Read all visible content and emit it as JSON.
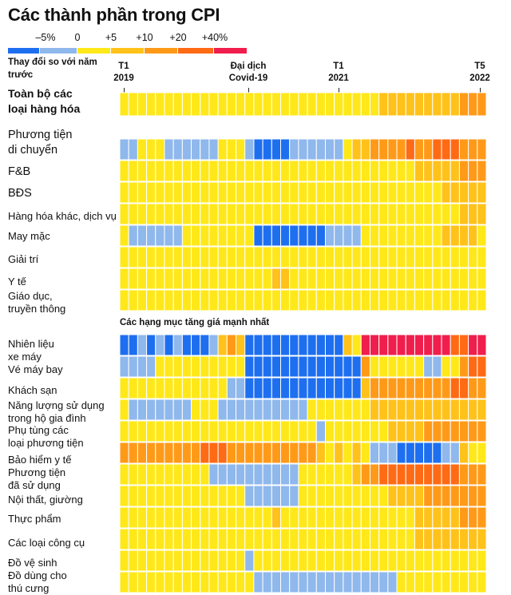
{
  "title": "Các thành phần trong CPI",
  "legend": {
    "labels": [
      "–5%",
      "0",
      "+5",
      "+10",
      "+20",
      "+40%"
    ],
    "colors": [
      "#1e6ff0",
      "#8fb8ec",
      "#ffe81a",
      "#ffc21a",
      "#ff9a18",
      "#ff6a14",
      "#f01e4c"
    ]
  },
  "subtitle_label": "Thay đổi so với năm trước",
  "timeline": [
    {
      "label": "T1 2019"
    },
    {
      "label": "Đại dịch Covid-19"
    },
    {
      "label": "T1 2021"
    },
    {
      "label": "T5 2022"
    }
  ],
  "section_header": "Các hạng mục tăng giá mạnh nhất",
  "chart_data": {
    "type": "heatmap",
    "title": "Các thành phần trong CPI",
    "value_label": "Thay đổi so với năm trước",
    "color_scale": {
      "breaks": [
        "–5%",
        "0",
        "+5",
        "+10",
        "+20",
        "+40%"
      ],
      "levels": [
        {
          "level": 0,
          "range": "≤ –5%"
        },
        {
          "level": 1,
          "range": "–5% to 0"
        },
        {
          "level": 2,
          "range": "0 to +5"
        },
        {
          "level": 3,
          "range": "+5 to +10"
        },
        {
          "level": 4,
          "range": "+10 to +20"
        },
        {
          "level": 5,
          "range": "+20 to +40%"
        },
        {
          "level": 6,
          "range": "≥ +40%"
        }
      ]
    },
    "x_range": [
      "T1 2019",
      "T5 2022"
    ],
    "months": 41,
    "rows": [
      {
        "label": "Toàn bộ các loại hàng hóa",
        "bold": true,
        "levels": [
          2,
          2,
          2,
          2,
          2,
          2,
          2,
          2,
          2,
          2,
          2,
          2,
          2,
          2,
          2,
          2,
          2,
          2,
          2,
          2,
          2,
          2,
          2,
          2,
          2,
          2,
          2,
          2,
          2,
          3,
          3,
          3,
          3,
          3,
          3,
          3,
          3,
          3,
          4,
          4,
          4
        ]
      },
      {
        "label": "Phương tiện di chuyển",
        "levels": [
          1,
          1,
          2,
          2,
          2,
          1,
          1,
          1,
          1,
          1,
          1,
          2,
          2,
          2,
          1,
          0,
          0,
          0,
          0,
          1,
          1,
          1,
          1,
          1,
          1,
          2,
          3,
          3,
          4,
          4,
          4,
          4,
          5,
          4,
          4,
          5,
          5,
          5,
          4,
          4,
          4
        ]
      },
      {
        "label": "F&B",
        "levels": [
          2,
          2,
          2,
          2,
          2,
          2,
          2,
          2,
          2,
          2,
          2,
          2,
          2,
          2,
          2,
          2,
          2,
          2,
          2,
          2,
          2,
          2,
          2,
          2,
          2,
          2,
          2,
          2,
          2,
          2,
          2,
          2,
          2,
          3,
          3,
          3,
          3,
          3,
          4,
          4,
          4
        ]
      },
      {
        "label": "BĐS",
        "levels": [
          2,
          2,
          2,
          2,
          2,
          2,
          2,
          2,
          2,
          2,
          2,
          2,
          2,
          2,
          2,
          2,
          2,
          2,
          2,
          2,
          2,
          2,
          2,
          2,
          2,
          2,
          2,
          2,
          2,
          2,
          2,
          2,
          2,
          2,
          2,
          2,
          3,
          3,
          3,
          3,
          3
        ]
      },
      {
        "label": "Hàng hóa khác, dịch vụ",
        "levels": [
          2,
          2,
          2,
          2,
          2,
          2,
          2,
          2,
          2,
          2,
          2,
          2,
          2,
          2,
          2,
          2,
          2,
          2,
          2,
          2,
          2,
          2,
          2,
          2,
          2,
          2,
          2,
          2,
          2,
          2,
          2,
          2,
          2,
          2,
          2,
          2,
          2,
          2,
          3,
          3,
          3
        ]
      },
      {
        "label": "May mặc",
        "levels": [
          2,
          1,
          1,
          1,
          1,
          1,
          1,
          2,
          2,
          2,
          2,
          2,
          2,
          2,
          2,
          0,
          0,
          0,
          0,
          0,
          0,
          0,
          0,
          1,
          1,
          1,
          1,
          2,
          2,
          2,
          2,
          2,
          2,
          2,
          2,
          2,
          3,
          3,
          3,
          3,
          2
        ]
      },
      {
        "label": "Giải trí",
        "levels": [
          2,
          2,
          2,
          2,
          2,
          2,
          2,
          2,
          2,
          2,
          2,
          2,
          2,
          2,
          2,
          2,
          2,
          2,
          2,
          2,
          2,
          2,
          2,
          2,
          2,
          2,
          2,
          2,
          2,
          2,
          2,
          2,
          2,
          2,
          2,
          2,
          2,
          2,
          2,
          2,
          2
        ]
      },
      {
        "label": "Y tế",
        "levels": [
          2,
          2,
          2,
          2,
          2,
          2,
          2,
          2,
          2,
          2,
          2,
          2,
          2,
          2,
          2,
          2,
          2,
          3,
          3,
          2,
          2,
          2,
          2,
          2,
          2,
          2,
          2,
          2,
          2,
          2,
          2,
          2,
          2,
          2,
          2,
          2,
          2,
          2,
          2,
          2,
          2
        ]
      },
      {
        "label": "Giáo dục, truyền thông",
        "levels": [
          2,
          2,
          2,
          2,
          2,
          2,
          2,
          2,
          2,
          2,
          2,
          2,
          2,
          2,
          2,
          2,
          2,
          2,
          2,
          2,
          2,
          2,
          2,
          2,
          2,
          2,
          2,
          2,
          2,
          2,
          2,
          2,
          2,
          2,
          2,
          2,
          2,
          2,
          2,
          2,
          2
        ]
      },
      {
        "label": "Nhiên liệu xe máy",
        "levels": [
          0,
          0,
          1,
          0,
          1,
          0,
          1,
          0,
          0,
          0,
          1,
          3,
          4,
          3,
          0,
          0,
          0,
          0,
          0,
          0,
          0,
          0,
          0,
          0,
          0,
          3,
          2,
          6,
          6,
          6,
          6,
          6,
          6,
          6,
          6,
          6,
          6,
          5,
          5,
          6,
          6
        ]
      },
      {
        "label": "Vé máy bay",
        "levels": [
          1,
          1,
          1,
          1,
          2,
          2,
          2,
          2,
          2,
          2,
          2,
          2,
          2,
          2,
          0,
          0,
          0,
          0,
          0,
          0,
          0,
          0,
          0,
          0,
          0,
          0,
          0,
          4,
          2,
          2,
          2,
          2,
          2,
          2,
          1,
          1,
          2,
          2,
          4,
          5,
          5
        ]
      },
      {
        "label": "Khách sạn",
        "levels": [
          2,
          2,
          2,
          2,
          2,
          2,
          2,
          2,
          2,
          2,
          2,
          2,
          1,
          1,
          0,
          0,
          0,
          0,
          0,
          0,
          0,
          0,
          0,
          0,
          0,
          0,
          0,
          3,
          4,
          4,
          4,
          4,
          4,
          4,
          4,
          4,
          4,
          5,
          5,
          4,
          4
        ]
      },
      {
        "label": "Năng lượng sử dụng trong hộ gia đình",
        "levels": [
          2,
          1,
          1,
          1,
          1,
          1,
          1,
          1,
          2,
          2,
          2,
          1,
          1,
          1,
          1,
          1,
          1,
          1,
          1,
          1,
          1,
          2,
          2,
          2,
          2,
          2,
          2,
          2,
          3,
          3,
          3,
          3,
          3,
          3,
          3,
          3,
          3,
          3,
          3,
          3,
          3
        ]
      },
      {
        "label": "Phụ tùng các loại phương tiện",
        "levels": [
          2,
          2,
          2,
          2,
          2,
          2,
          2,
          2,
          2,
          2,
          2,
          2,
          2,
          2,
          2,
          2,
          2,
          2,
          2,
          2,
          2,
          2,
          1,
          2,
          2,
          2,
          2,
          2,
          2,
          2,
          3,
          3,
          3,
          3,
          4,
          4,
          4,
          4,
          4,
          4,
          4
        ]
      },
      {
        "label": "Bảo hiểm y tế",
        "levels": [
          4,
          4,
          4,
          4,
          4,
          4,
          4,
          4,
          4,
          5,
          5,
          5,
          4,
          4,
          4,
          4,
          4,
          4,
          4,
          4,
          4,
          4,
          3,
          2,
          3,
          2,
          3,
          2,
          1,
          1,
          1,
          0,
          0,
          0,
          0,
          0,
          1,
          1,
          3,
          2,
          2
        ]
      },
      {
        "label": "Phương tiện đã sử dụng",
        "levels": [
          2,
          2,
          2,
          2,
          2,
          2,
          2,
          2,
          2,
          2,
          1,
          1,
          1,
          1,
          1,
          1,
          1,
          1,
          1,
          1,
          2,
          2,
          2,
          2,
          2,
          2,
          3,
          4,
          4,
          5,
          5,
          5,
          5,
          5,
          5,
          5,
          5,
          5,
          4,
          4,
          4
        ]
      },
      {
        "label": "Nội thất, giường",
        "levels": [
          2,
          2,
          2,
          2,
          2,
          2,
          2,
          2,
          2,
          2,
          2,
          2,
          2,
          2,
          1,
          1,
          1,
          1,
          1,
          1,
          2,
          2,
          2,
          2,
          2,
          2,
          2,
          2,
          2,
          2,
          3,
          3,
          3,
          3,
          4,
          4,
          4,
          4,
          4,
          4,
          4
        ]
      },
      {
        "label": "Thực phẩm",
        "levels": [
          2,
          2,
          2,
          2,
          2,
          2,
          2,
          2,
          2,
          2,
          2,
          2,
          2,
          2,
          2,
          2,
          2,
          3,
          2,
          2,
          2,
          2,
          2,
          2,
          2,
          2,
          2,
          2,
          2,
          2,
          2,
          2,
          2,
          3,
          3,
          3,
          3,
          3,
          4,
          4,
          4
        ]
      },
      {
        "label": "Các loại công cụ",
        "levels": [
          2,
          2,
          2,
          2,
          2,
          2,
          2,
          2,
          2,
          2,
          2,
          2,
          2,
          2,
          2,
          2,
          2,
          2,
          2,
          2,
          2,
          2,
          2,
          2,
          2,
          2,
          2,
          2,
          2,
          2,
          2,
          2,
          2,
          3,
          3,
          3,
          3,
          3,
          3,
          3,
          3
        ]
      },
      {
        "label": "Đồ vệ sinh",
        "levels": [
          2,
          2,
          2,
          2,
          2,
          2,
          2,
          2,
          2,
          2,
          2,
          2,
          2,
          2,
          1,
          2,
          2,
          2,
          2,
          2,
          2,
          2,
          2,
          2,
          2,
          2,
          2,
          2,
          2,
          2,
          2,
          2,
          2,
          2,
          2,
          2,
          2,
          2,
          2,
          2,
          2
        ]
      },
      {
        "label": "Đồ dùng cho thú cưng",
        "levels": [
          2,
          2,
          2,
          2,
          2,
          2,
          2,
          2,
          2,
          2,
          2,
          2,
          2,
          2,
          2,
          1,
          1,
          1,
          1,
          1,
          1,
          1,
          1,
          1,
          1,
          1,
          1,
          1,
          1,
          1,
          1,
          2,
          2,
          2,
          2,
          2,
          2,
          2,
          2,
          2,
          2
        ]
      }
    ]
  }
}
